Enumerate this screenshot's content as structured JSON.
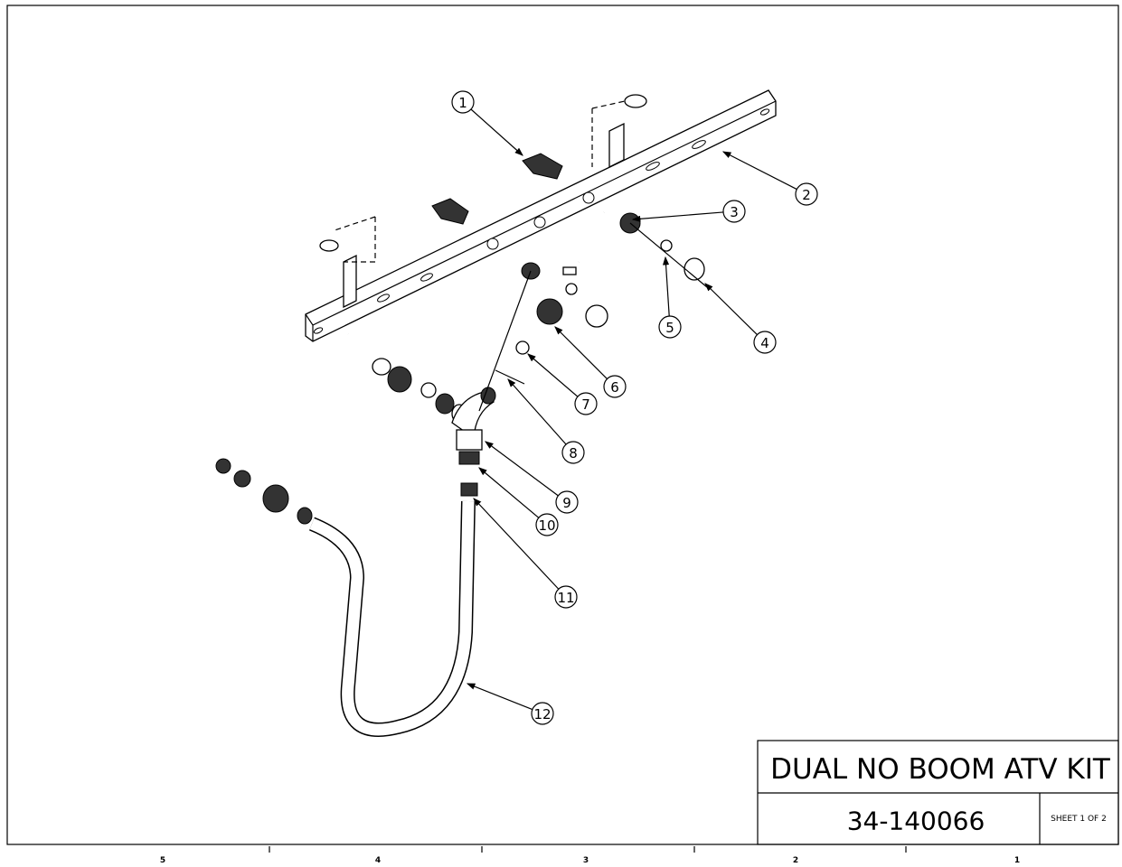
{
  "title_block": {
    "title": "DUAL NO BOOM ATV KIT",
    "part_number": "34-140066",
    "sheet": "SHEET 1 OF 2"
  },
  "balloons": [
    "1",
    "2",
    "3",
    "4",
    "5",
    "6",
    "7",
    "8",
    "9",
    "10",
    "11",
    "12"
  ],
  "zones": [
    "5",
    "4",
    "3",
    "2",
    "1"
  ]
}
